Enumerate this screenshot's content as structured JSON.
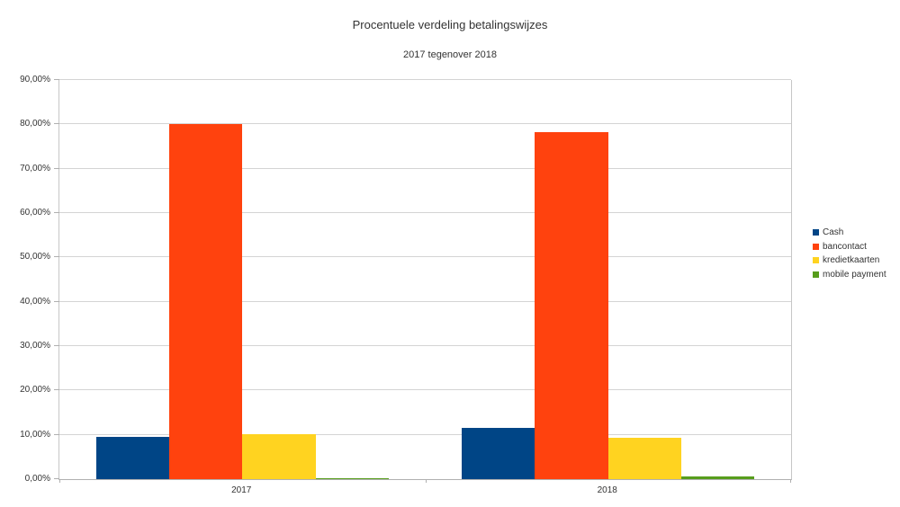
{
  "chart": {
    "title": "Procentuele verdeling betalingswijzes",
    "subtitle": "2017 tegenover 2018"
  },
  "chart_data": {
    "type": "bar",
    "title": "Procentuele verdeling betalingswijzes",
    "subtitle": "2017 tegenover 2018",
    "categories": [
      "2017",
      "2018"
    ],
    "series": [
      {
        "name": "Cash",
        "color": "#004586",
        "values": [
          9.5,
          11.6
        ]
      },
      {
        "name": "bancontact",
        "color": "#FF420E",
        "values": [
          80.0,
          78.3
        ]
      },
      {
        "name": "kredietkaarten",
        "color": "#FFD320",
        "values": [
          10.2,
          9.3
        ]
      },
      {
        "name": "mobile payment",
        "color": "#579D1C",
        "values": [
          0.3,
          0.7
        ]
      }
    ],
    "ylim": [
      0,
      90
    ],
    "y_tick_step": 10,
    "y_ticks": [
      "0,00%",
      "10,00%",
      "20,00%",
      "30,00%",
      "40,00%",
      "50,00%",
      "60,00%",
      "70,00%",
      "80,00%",
      "90,00%"
    ],
    "grid": true,
    "legend_position": "right",
    "colors": {
      "background": "#ffffff",
      "gridline": "#d4d4d4",
      "axis": "#b0b0b0",
      "text": "#333333"
    }
  }
}
